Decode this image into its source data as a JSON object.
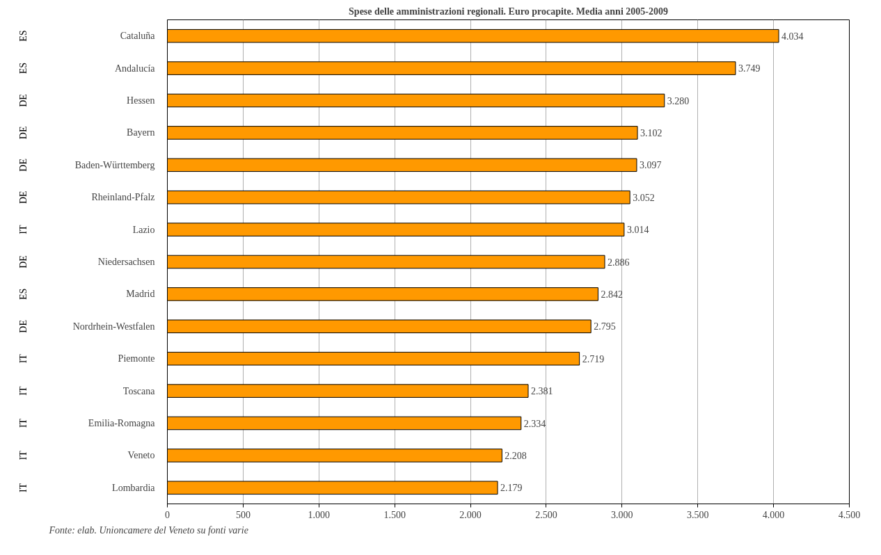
{
  "chart_data": {
    "type": "bar",
    "orientation": "horizontal",
    "title": "Spese delle amministrazioni regionali. Euro procapite. Media anni 2005-2009",
    "categories": [
      "Cataluña",
      "Andalucía",
      "Hessen",
      "Bayern",
      "Baden-Württemberg",
      "Rheinland-Pfalz",
      "Lazio",
      "Niedersachsen",
      "Madrid",
      "Nordrhein-Westfalen",
      "Piemonte",
      "Toscana",
      "Emilia-Romagna",
      "Veneto",
      "Lombardia"
    ],
    "values": [
      4034,
      3749,
      3280,
      3102,
      3097,
      3052,
      3014,
      2886,
      2842,
      2795,
      2719,
      2381,
      2334,
      2208,
      2179
    ],
    "value_labels": [
      "4.034",
      "3.749",
      "3.280",
      "3.102",
      "3.097",
      "3.052",
      "3.014",
      "2.886",
      "2.842",
      "2.795",
      "2.719",
      "2.381",
      "2.334",
      "2.208",
      "2.179"
    ],
    "color": "#ff9900",
    "xlim": [
      0,
      4500
    ],
    "xticks": [
      0,
      500,
      {
        "value": 1000,
        "label": "1.000"
      },
      {
        "value": 1500,
        "label": "1.500"
      },
      {
        "value": 2000,
        "label": "2.000"
      },
      {
        "value": 2500,
        "label": "2.500"
      },
      {
        "value": 3000,
        "label": "3.000"
      },
      {
        "value": 3500,
        "label": "3.500"
      },
      {
        "value": 4000,
        "label": "4.000"
      },
      {
        "value": 4500,
        "label": "4.500"
      }
    ],
    "grid": "x",
    "annotations": [
      "ES",
      "ES",
      "DE",
      "DE",
      "DE",
      "DE",
      "IT",
      "DE",
      "ES",
      "DE",
      "IT",
      "IT",
      "IT",
      "IT",
      "IT",
      "Fonte: elab. Unioncamere del Veneto su fonti varie"
    ]
  }
}
